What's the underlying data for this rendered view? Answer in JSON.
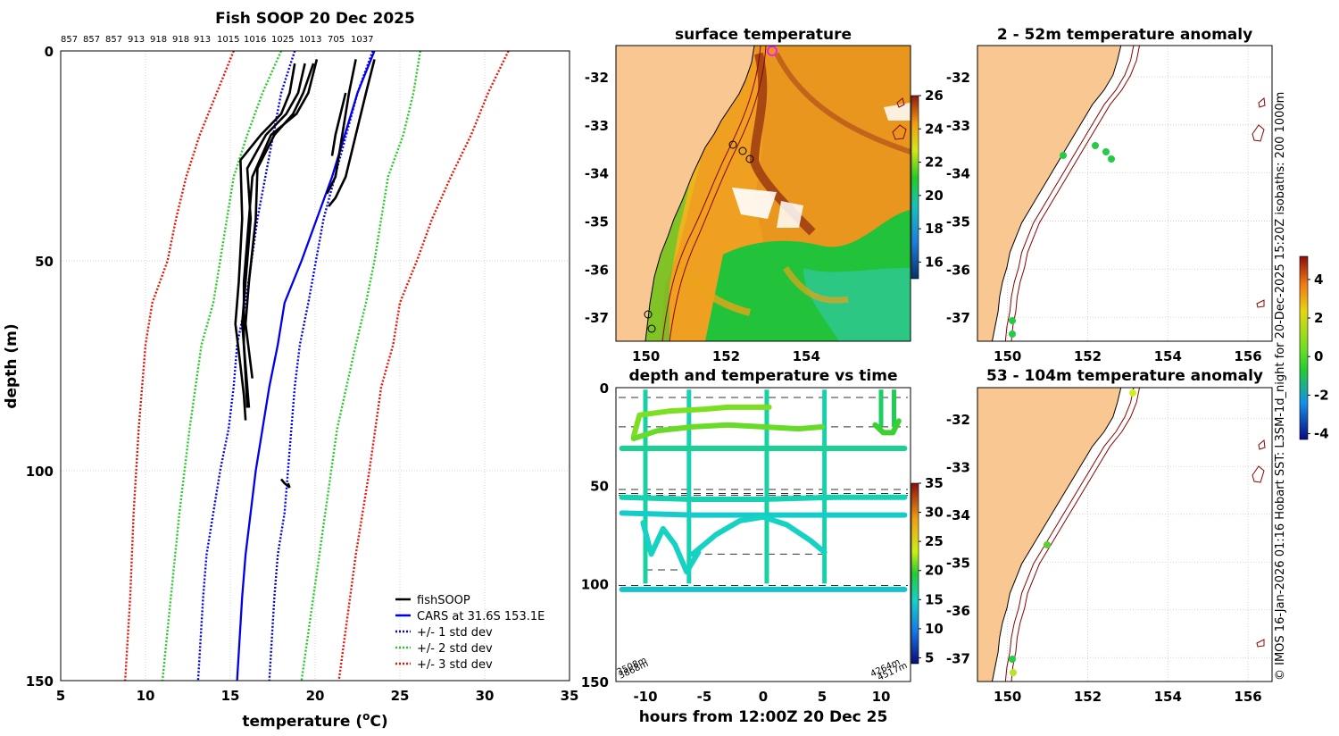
{
  "profile_plot": {
    "title": "Fish SOOP 20 Dec 2025",
    "top_ticks": [
      "857",
      "857",
      "857",
      "913",
      "918",
      "918",
      "913",
      "1015",
      "1016",
      "1025",
      "1013",
      "705",
      "1037"
    ],
    "xlabel": "temperature (°C)",
    "xlabel_main": "temperature (",
    "xlabel_sup": "o",
    "xlabel_end": "C)",
    "ylabel": "depth (m)",
    "legend": [
      {
        "label": "fishSOOP",
        "color": "#000000",
        "dash": "solid"
      },
      {
        "label": "CARS at 31.6S 153.1E",
        "color": "#0000ee",
        "dash": "solid"
      },
      {
        "label": "+/- 1 std dev",
        "color": "#0000ee",
        "dash": "dot"
      },
      {
        "label": "+/- 2 std dev",
        "color": "#22cc22",
        "dash": "dot"
      },
      {
        "label": "+/- 3 std dev",
        "color": "#ee1100",
        "dash": "dot"
      }
    ]
  },
  "sst_map": {
    "title": "surface temperature"
  },
  "anom_map_shallow": {
    "title": "2 - 52m temperature anomaly"
  },
  "anom_map_deep": {
    "title": "53 - 104m temperature anomaly"
  },
  "depth_time": {
    "title": "depth and temperature vs time",
    "xlabel": "hours from 12:00Z 20 Dec 25",
    "corner_labels": [
      "3508m",
      "3868m",
      "4264m",
      "4517m"
    ]
  },
  "credit": "© IMOS 16-Jan-2026 01:16 Hobart SST: L3SM-1d_night for 20-Dec-2025 15:20Z isobaths: 200  1000m",
  "colors": {
    "land": "#f9c792",
    "cars": "#0000ee",
    "std1": "#0000ee",
    "std2": "#22cc22",
    "std3": "#ee1100",
    "marker": "#22cc44"
  },
  "chart_data": [
    {
      "type": "line",
      "title": "Fish SOOP 20 Dec 2025",
      "xlabel": "temperature (°C)",
      "ylabel": "depth (m)",
      "xlim": [
        5,
        35
      ],
      "ylim": [
        0,
        150
      ],
      "y_reversed": true,
      "xticks": [
        5,
        10,
        15,
        20,
        25,
        30,
        35
      ],
      "yticks": [
        0,
        50,
        100,
        150
      ],
      "series": [
        {
          "name": "CARS at 31.6S 153.1E",
          "role": "mean",
          "x": [
            23.5,
            22.5,
            21.0,
            19.2,
            18.2,
            17.8,
            17.3,
            16.9,
            16.5,
            16.2,
            15.9,
            15.7,
            15.4
          ],
          "y": [
            0,
            10,
            30,
            50,
            60,
            70,
            80,
            90,
            100,
            110,
            120,
            130,
            150
          ]
        },
        {
          "name": "+1 std dev",
          "x": [
            23.4,
            22.5,
            20.5,
            19.6,
            19.1,
            18.8,
            18.6,
            18.4,
            18.2,
            17.8,
            17.6,
            17.3
          ],
          "y": [
            0,
            10,
            40,
            60,
            70,
            80,
            90,
            100,
            110,
            120,
            130,
            150
          ]
        },
        {
          "name": "-1 std dev",
          "x": [
            18.8,
            18.0,
            16.6,
            15.9,
            15.4,
            15.2,
            14.9,
            14.4,
            14.0,
            13.6,
            13.4,
            13.1
          ],
          "y": [
            0,
            10,
            40,
            60,
            70,
            80,
            90,
            100,
            110,
            120,
            130,
            150
          ]
        },
        {
          "name": "+2 std dev",
          "x": [
            26.2,
            25.8,
            25.2,
            24.3,
            23.9,
            23.5,
            23.0,
            22.4,
            21.3,
            20.6,
            19.9,
            19.2
          ],
          "y": [
            0,
            10,
            20,
            30,
            40,
            50,
            60,
            70,
            90,
            110,
            130,
            150
          ]
        },
        {
          "name": "-2 std dev",
          "x": [
            18.0,
            16.9,
            16.0,
            15.2,
            14.8,
            14.4,
            14.0,
            13.3,
            12.6,
            12.0,
            11.5,
            11.0
          ],
          "y": [
            0,
            10,
            20,
            30,
            40,
            50,
            60,
            70,
            90,
            110,
            130,
            150
          ]
        },
        {
          "name": "+3 std dev",
          "x": [
            31.4,
            30.2,
            29.2,
            28.0,
            26.9,
            26.0,
            25.0,
            24.6,
            23.9,
            23.2,
            22.4,
            21.4
          ],
          "y": [
            0,
            10,
            20,
            30,
            40,
            50,
            60,
            70,
            80,
            100,
            120,
            150
          ]
        },
        {
          "name": "-3 std dev",
          "x": [
            15.2,
            14.2,
            13.2,
            12.4,
            11.8,
            11.3,
            10.4,
            10.0,
            9.6,
            9.3,
            9.1,
            8.8
          ],
          "y": [
            0,
            10,
            20,
            30,
            40,
            50,
            60,
            70,
            90,
            110,
            130,
            150
          ]
        },
        {
          "name": "fishSOOP",
          "x": [
            18.8,
            18.5,
            18.0,
            16.8,
            15.6,
            15.7,
            15.5,
            15.3,
            15.6,
            15.8,
            15.9
          ],
          "y": [
            3,
            10,
            15,
            20,
            26,
            40,
            55,
            65,
            75,
            82,
            88
          ]
        },
        {
          "name": "fishSOOP",
          "x": [
            19.4,
            19.0,
            18.3,
            17.1,
            16.0,
            16.2,
            15.9,
            15.7,
            15.9,
            16.1
          ],
          "y": [
            3,
            10,
            15,
            20,
            28,
            40,
            55,
            65,
            75,
            85
          ]
        },
        {
          "name": "fishSOOP",
          "x": [
            19.9,
            19.3,
            18.7,
            17.6,
            16.6,
            16.5,
            16.1,
            15.9,
            16.3
          ],
          "y": [
            3,
            10,
            15,
            20,
            28,
            40,
            55,
            65,
            78
          ]
        },
        {
          "name": "fishSOOP",
          "x": [
            20.1,
            19.6,
            18.9,
            17.4,
            16.3,
            16.0,
            15.8,
            15.8,
            16.0
          ],
          "y": [
            2,
            10,
            15,
            20,
            30,
            45,
            55,
            70,
            85
          ]
        },
        {
          "name": "fishSOOP",
          "x": [
            21.8,
            21.5,
            21.2,
            21.0
          ],
          "y": [
            10,
            15,
            20,
            25
          ]
        },
        {
          "name": "fishSOOP",
          "x": [
            22.4,
            22.0,
            21.6,
            21.2,
            20.7
          ],
          "y": [
            2,
            10,
            20,
            30,
            34
          ]
        },
        {
          "name": "fishSOOP",
          "x": [
            23.5,
            23.0,
            22.4,
            21.8,
            21.2,
            20.8
          ],
          "y": [
            2,
            10,
            20,
            30,
            35,
            37
          ]
        },
        {
          "name": "fishSOOP",
          "x": [
            18.0,
            18.2,
            18.5,
            18.4
          ],
          "y": [
            102,
            103,
            104,
            103
          ]
        }
      ]
    },
    {
      "type": "scatter",
      "title": "depth and temperature vs time",
      "xlabel": "hours from 12:00Z 20 Dec 25",
      "ylabel": "",
      "xlim": [
        -12.5,
        12.5
      ],
      "ylim": [
        0,
        150
      ],
      "y_reversed": true,
      "xticks": [
        -10,
        -5,
        0,
        5,
        10
      ],
      "yticks": [
        0,
        50,
        100,
        150
      ],
      "colorbar": {
        "min": 4,
        "max": 35,
        "ticks": [
          5,
          10,
          15,
          20,
          25,
          30,
          35
        ]
      },
      "bathymetry_dashed_levels_m": [
        5,
        20,
        52,
        54,
        55,
        85,
        93,
        101
      ],
      "tracks": [
        {
          "temp": 21.5,
          "x": [
            -11,
            -10.5,
            -8,
            -5,
            -3,
            -1,
            0.5
          ],
          "y": [
            25,
            14,
            12,
            11,
            10,
            10,
            10
          ]
        },
        {
          "temp": 21.0,
          "x": [
            -11,
            -9,
            -6,
            -3,
            0,
            3,
            5
          ],
          "y": [
            26,
            22,
            20,
            19,
            20,
            21,
            20
          ]
        },
        {
          "temp": 20.0,
          "x": [
            9.5,
            10.2,
            11.0,
            11.5
          ],
          "y": [
            19,
            23,
            23,
            17
          ]
        },
        {
          "temp": 16.5,
          "x": [
            -12,
            -6,
            0,
            6,
            12
          ],
          "y": [
            31,
            31,
            31,
            31,
            31
          ]
        },
        {
          "temp": 15.5,
          "x": [
            -12,
            -6,
            0,
            6,
            12
          ],
          "y": [
            56,
            57,
            57,
            56,
            56
          ]
        },
        {
          "temp": 14.5,
          "x": [
            -12,
            -6,
            0,
            6,
            12
          ],
          "y": [
            64,
            65,
            65,
            65,
            65
          ]
        },
        {
          "temp": 15.0,
          "x": [
            -10.2,
            -9.5,
            -8.5,
            -7.5,
            -6.5,
            -5.5
          ],
          "y": [
            69,
            85,
            72,
            80,
            94,
            84
          ]
        },
        {
          "temp": 15.0,
          "x": [
            -6,
            -4,
            -2,
            0,
            2,
            4,
            5.2
          ],
          "y": [
            85,
            75,
            68,
            66,
            70,
            78,
            84
          ]
        },
        {
          "temp": 14.0,
          "x": [
            -12,
            -6,
            0,
            6,
            12
          ],
          "y": [
            103,
            103,
            103,
            103,
            103
          ]
        }
      ]
    }
  ]
}
